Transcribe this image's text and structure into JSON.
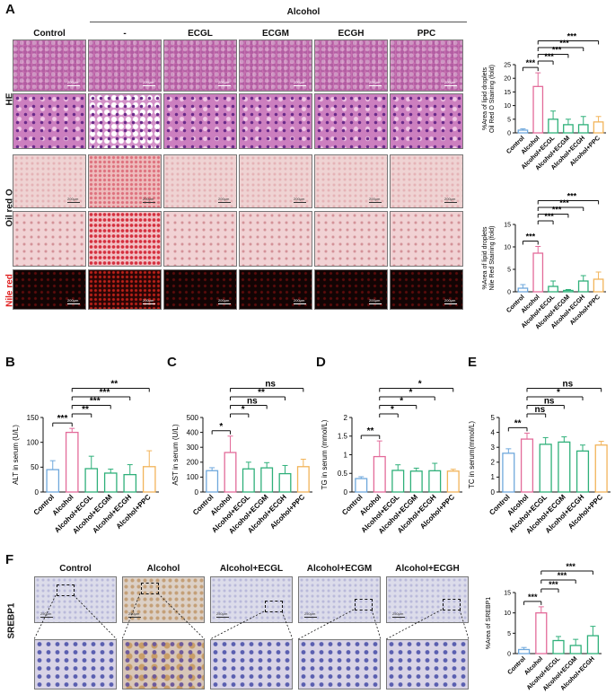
{
  "panels": {
    "A": "A",
    "B": "B",
    "C": "C",
    "D": "D",
    "E": "E",
    "F": "F"
  },
  "panel_a": {
    "group_header": "Alcohol",
    "columns": [
      "Control",
      "-",
      "ECGL",
      "ECGM",
      "ECGH",
      "PPC"
    ],
    "rows": [
      "HE",
      "Oil red O",
      "Nile red"
    ],
    "scale_label": "200μm"
  },
  "panel_f": {
    "columns": [
      "Control",
      "Alcohol",
      "Alcohol+ECGL",
      "Alcohol+ECGM",
      "Alcohol+ECGH"
    ],
    "row": "SREBP1",
    "scale_label": "250μm"
  },
  "colors": {
    "control": "#6fa8dc",
    "alcohol": "#e36b9a",
    "ecg": "#2fb07a",
    "ppc": "#f2b45a"
  },
  "chart_data": [
    {
      "id": "oil",
      "type": "bar",
      "ylabel": [
        "%Area of lipid droplets",
        "Oil Red O Staining (fold)"
      ],
      "categories": [
        "Control",
        "Alcohol",
        "Alcohol+ECGL",
        "Alcohol+ECGM",
        "Alcohol+ECGH",
        "Alcohol+PPC"
      ],
      "values": [
        1,
        17,
        5,
        3,
        3,
        4
      ],
      "errors": [
        0.5,
        5,
        3,
        2,
        3,
        2
      ],
      "ylim": [
        0,
        25
      ],
      "yticks": [
        0,
        5,
        10,
        15,
        20,
        25
      ],
      "sig": [
        {
          "from": 0,
          "to": 1,
          "label": "***"
        },
        {
          "from": 1,
          "to": 2,
          "label": "***"
        },
        {
          "from": 1,
          "to": 3,
          "label": "***"
        },
        {
          "from": 1,
          "to": 4,
          "label": "***"
        },
        {
          "from": 1,
          "to": 5,
          "label": "***"
        }
      ]
    },
    {
      "id": "nile",
      "type": "bar",
      "ylabel": [
        "%Area of lipid droplets",
        "Nile Red Staining (fold)"
      ],
      "categories": [
        "Control",
        "Alcohol",
        "Alcohol+ECGL",
        "Alcohol+ECGM",
        "Alcohol+ECGH",
        "Alcohol+PPC"
      ],
      "values": [
        0.8,
        8.6,
        1.2,
        0.3,
        2.4,
        2.8
      ],
      "errors": [
        0.8,
        1.5,
        1.2,
        0.2,
        1.2,
        1.6
      ],
      "ylim": [
        0,
        15
      ],
      "yticks": [
        0,
        5,
        10,
        15
      ],
      "sig": [
        {
          "from": 0,
          "to": 1,
          "label": "***"
        },
        {
          "from": 1,
          "to": 2,
          "label": "***"
        },
        {
          "from": 1,
          "to": 3,
          "label": "***"
        },
        {
          "from": 1,
          "to": 4,
          "label": "***"
        },
        {
          "from": 1,
          "to": 5,
          "label": "***"
        }
      ]
    },
    {
      "id": "alt",
      "type": "bar",
      "ylabel": [
        "ALT in serum (U/L)"
      ],
      "categories": [
        "Control",
        "Alcohol",
        "Alcohol+ECGL",
        "Alcohol+ECGM",
        "Alcohol+ECGH",
        "Alcohol+PPC"
      ],
      "values": [
        45,
        120,
        47,
        38,
        35,
        51
      ],
      "errors": [
        18,
        8,
        25,
        8,
        20,
        32
      ],
      "ylim": [
        0,
        150
      ],
      "yticks": [
        0,
        50,
        100,
        150
      ],
      "sig": [
        {
          "from": 0,
          "to": 1,
          "label": "***"
        },
        {
          "from": 1,
          "to": 2,
          "label": "**"
        },
        {
          "from": 1,
          "to": 3,
          "label": "***"
        },
        {
          "from": 1,
          "to": 4,
          "label": "***"
        },
        {
          "from": 1,
          "to": 5,
          "label": "**"
        }
      ]
    },
    {
      "id": "ast",
      "type": "bar",
      "ylabel": [
        "AST in serum (U/L)"
      ],
      "categories": [
        "Control",
        "Alcohol",
        "Alcohol+ECGL",
        "Alcohol+ECGM",
        "Alcohol+ECGH",
        "Alcohol+PPC"
      ],
      "values": [
        143,
        265,
        155,
        162,
        123,
        170
      ],
      "errors": [
        20,
        110,
        45,
        35,
        55,
        50
      ],
      "ylim": [
        0,
        500
      ],
      "yticks": [
        0,
        100,
        200,
        300,
        400,
        500
      ],
      "sig": [
        {
          "from": 0,
          "to": 1,
          "label": "*"
        },
        {
          "from": 1,
          "to": 2,
          "label": "*"
        },
        {
          "from": 1,
          "to": 3,
          "label": "ns"
        },
        {
          "from": 1,
          "to": 4,
          "label": "**"
        },
        {
          "from": 1,
          "to": 5,
          "label": "ns"
        }
      ]
    },
    {
      "id": "tg",
      "type": "bar",
      "ylabel": [
        "TG in serum (mmol/L)"
      ],
      "categories": [
        "Control",
        "Alcohol",
        "Alcohol+ECGL",
        "Alcohol+ECGM",
        "Alcohol+ECGH",
        "Alcohol+PPC"
      ],
      "values": [
        0.36,
        0.95,
        0.58,
        0.56,
        0.57,
        0.56
      ],
      "errors": [
        0.05,
        0.42,
        0.15,
        0.08,
        0.2,
        0.05
      ],
      "ylim": [
        0,
        2.0
      ],
      "yticks": [
        0.0,
        0.5,
        1.0,
        1.5,
        2.0
      ],
      "sig": [
        {
          "from": 0,
          "to": 1,
          "label": "**"
        },
        {
          "from": 1,
          "to": 2,
          "label": "*"
        },
        {
          "from": 1,
          "to": 3,
          "label": "*"
        },
        {
          "from": 1,
          "to": 4,
          "label": "*"
        },
        {
          "from": 1,
          "to": 5,
          "label": "*"
        }
      ]
    },
    {
      "id": "tc",
      "type": "bar",
      "ylabel": [
        "TC in serum(mmol/L)"
      ],
      "categories": [
        "Control",
        "Alcohol",
        "Alcohol+ECGL",
        "Alcohol+ECGM",
        "Alcohol+ECGH",
        "Alcohol+PPC"
      ],
      "values": [
        2.6,
        3.55,
        3.2,
        3.35,
        2.75,
        3.15
      ],
      "errors": [
        0.3,
        0.4,
        0.45,
        0.35,
        0.4,
        0.25
      ],
      "ylim": [
        0,
        5
      ],
      "yticks": [
        0,
        1,
        2,
        3,
        4,
        5
      ],
      "sig": [
        {
          "from": 0,
          "to": 1,
          "label": "**"
        },
        {
          "from": 1,
          "to": 2,
          "label": "ns"
        },
        {
          "from": 1,
          "to": 3,
          "label": "ns"
        },
        {
          "from": 1,
          "to": 4,
          "label": "*"
        },
        {
          "from": 1,
          "to": 5,
          "label": "ns"
        }
      ]
    },
    {
      "id": "srebp",
      "type": "bar",
      "ylabel": [
        "%Area of SREBP1"
      ],
      "categories": [
        "Control",
        "Alcohol",
        "Alcohol+ECGL",
        "Alcohol+ECGM",
        "Alcohol+ECGH"
      ],
      "values": [
        1,
        10,
        3.2,
        2,
        4.4
      ],
      "errors": [
        0.5,
        1.5,
        1,
        1.5,
        2.3
      ],
      "ylim": [
        0,
        15
      ],
      "yticks": [
        0,
        5,
        10,
        15
      ],
      "sig": [
        {
          "from": 0,
          "to": 1,
          "label": "***"
        },
        {
          "from": 1,
          "to": 2,
          "label": "***"
        },
        {
          "from": 1,
          "to": 3,
          "label": "***"
        },
        {
          "from": 1,
          "to": 4,
          "label": "***"
        }
      ]
    }
  ]
}
